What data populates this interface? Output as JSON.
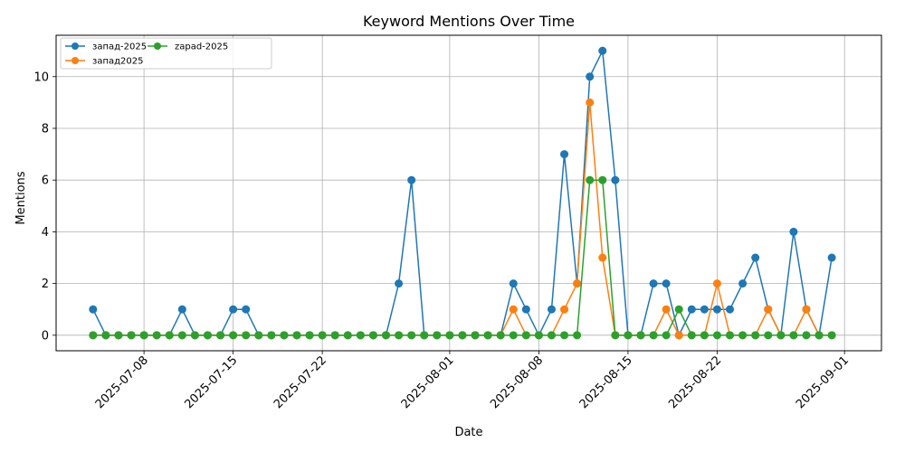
{
  "chart_data": {
    "type": "line",
    "title": "Keyword Mentions Over Time",
    "xlabel": "Date",
    "ylabel": "Mentions",
    "start_date": "2025-07-04",
    "x_ticks": [
      "2025-07-08",
      "2025-07-15",
      "2025-07-22",
      "2025-08-01",
      "2025-08-08",
      "2025-08-15",
      "2025-08-22",
      "2025-09-01"
    ],
    "y_ticks": [
      0,
      2,
      4,
      6,
      8,
      10
    ],
    "ylim": [
      -0.6,
      11.6
    ],
    "grid": true,
    "legend_position": "top-left",
    "series": [
      {
        "name": "запад-2025",
        "color": "#1f77b4",
        "values": [
          1,
          0,
          0,
          0,
          0,
          0,
          0,
          1,
          0,
          0,
          0,
          1,
          1,
          0,
          0,
          0,
          0,
          0,
          0,
          0,
          0,
          0,
          0,
          0,
          2,
          6,
          0,
          0,
          0,
          0,
          0,
          0,
          0,
          2,
          1,
          0,
          1,
          7,
          2,
          10,
          11,
          6,
          0,
          0,
          2,
          2,
          0,
          1,
          1,
          1,
          1,
          2,
          3,
          1,
          0,
          4,
          1,
          0,
          3
        ]
      },
      {
        "name": "запад2025",
        "color": "#ff7f0e",
        "values": [
          0,
          0,
          0,
          0,
          0,
          0,
          0,
          0,
          0,
          0,
          0,
          0,
          0,
          0,
          0,
          0,
          0,
          0,
          0,
          0,
          0,
          0,
          0,
          0,
          0,
          0,
          0,
          0,
          0,
          0,
          0,
          0,
          0,
          1,
          0,
          0,
          0,
          1,
          2,
          9,
          3,
          0,
          0,
          0,
          0,
          1,
          0,
          0,
          0,
          2,
          0,
          0,
          0,
          1,
          0,
          0,
          1,
          0,
          0
        ]
      },
      {
        "name": "zapad-2025",
        "color": "#2ca02c",
        "values": [
          0,
          0,
          0,
          0,
          0,
          0,
          0,
          0,
          0,
          0,
          0,
          0,
          0,
          0,
          0,
          0,
          0,
          0,
          0,
          0,
          0,
          0,
          0,
          0,
          0,
          0,
          0,
          0,
          0,
          0,
          0,
          0,
          0,
          0,
          0,
          0,
          0,
          0,
          0,
          6,
          6,
          0,
          0,
          0,
          0,
          0,
          1,
          0,
          0,
          0,
          0,
          0,
          0,
          0,
          0,
          0,
          0,
          0,
          0
        ]
      }
    ]
  }
}
